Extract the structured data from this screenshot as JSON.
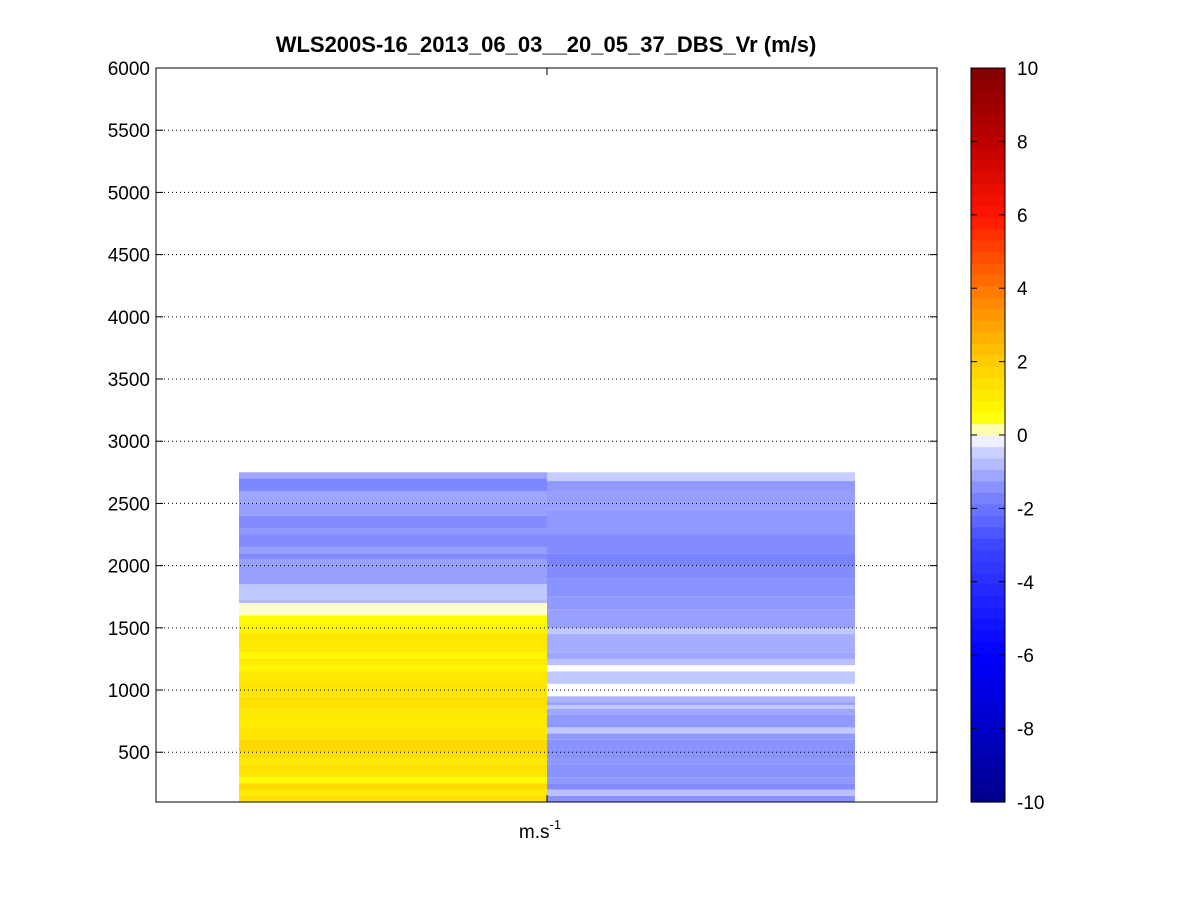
{
  "chart_data": {
    "type": "heatmap",
    "title": "WLS200S-16_2013_06_03__20_05_37_DBS_Vr (m/s)",
    "xlabel": "m.s",
    "xlabel_superscript": "-1",
    "ylabel": "",
    "ylim": [
      100,
      6000
    ],
    "yticks": [
      500,
      1000,
      1500,
      2000,
      2500,
      3000,
      3500,
      4000,
      4500,
      5000,
      5500,
      6000
    ],
    "grid": "horizontal dotted",
    "colormap": "blue-white-yellow-red",
    "clim": [
      -10,
      10
    ],
    "colorbar_ticks": [
      10,
      8,
      6,
      4,
      2,
      0,
      -2,
      -4,
      -6,
      -8,
      -10
    ],
    "columns": [
      {
        "name": "",
        "cells": [
          {
            "from": 100,
            "to": 150,
            "value": 1.4
          },
          {
            "from": 150,
            "to": 200,
            "value": 1.1
          },
          {
            "from": 200,
            "to": 250,
            "value": 1.6
          },
          {
            "from": 250,
            "to": 300,
            "value": 0.6
          },
          {
            "from": 300,
            "to": 350,
            "value": 1.2
          },
          {
            "from": 350,
            "to": 400,
            "value": 1.4
          },
          {
            "from": 400,
            "to": 450,
            "value": 1.2
          },
          {
            "from": 450,
            "to": 500,
            "value": 1.5
          },
          {
            "from": 500,
            "to": 600,
            "value": 1.6
          },
          {
            "from": 600,
            "to": 650,
            "value": 1.3
          },
          {
            "from": 650,
            "to": 700,
            "value": 1.2
          },
          {
            "from": 700,
            "to": 800,
            "value": 1.1
          },
          {
            "from": 800,
            "to": 850,
            "value": 1.2
          },
          {
            "from": 850,
            "to": 950,
            "value": 1.4
          },
          {
            "from": 950,
            "to": 1050,
            "value": 1.3
          },
          {
            "from": 1050,
            "to": 1150,
            "value": 1.2
          },
          {
            "from": 1150,
            "to": 1200,
            "value": 0.8
          },
          {
            "from": 1200,
            "to": 1250,
            "value": 1.1
          },
          {
            "from": 1250,
            "to": 1300,
            "value": 0.7
          },
          {
            "from": 1300,
            "to": 1350,
            "value": 1.1
          },
          {
            "from": 1350,
            "to": 1450,
            "value": 1.2
          },
          {
            "from": 1450,
            "to": 1500,
            "value": 0.9
          },
          {
            "from": 1500,
            "to": 1550,
            "value": 0.7
          },
          {
            "from": 1550,
            "to": 1600,
            "value": 0.6
          },
          {
            "from": 1600,
            "to": 1700,
            "value": 0.1
          },
          {
            "from": 1700,
            "to": 1730,
            "value": -0.8
          },
          {
            "from": 1730,
            "to": 1850,
            "value": -0.6
          },
          {
            "from": 1850,
            "to": 2050,
            "value": -1.2
          },
          {
            "from": 2050,
            "to": 2100,
            "value": -1.5
          },
          {
            "from": 2100,
            "to": 2150,
            "value": -1.2
          },
          {
            "from": 2150,
            "to": 2250,
            "value": -1.5
          },
          {
            "from": 2250,
            "to": 2300,
            "value": -1.3
          },
          {
            "from": 2300,
            "to": 2400,
            "value": -1.5
          },
          {
            "from": 2400,
            "to": 2500,
            "value": -1.2
          },
          {
            "from": 2500,
            "to": 2600,
            "value": -1.1
          },
          {
            "from": 2600,
            "to": 2700,
            "value": -1.6
          },
          {
            "from": 2700,
            "to": 2750,
            "value": -1.1
          }
        ]
      },
      {
        "name": "",
        "cells": [
          {
            "from": 100,
            "to": 150,
            "value": -1.4
          },
          {
            "from": 150,
            "to": 200,
            "value": -0.7
          },
          {
            "from": 200,
            "to": 250,
            "value": -1.5
          },
          {
            "from": 250,
            "to": 300,
            "value": -1.3
          },
          {
            "from": 300,
            "to": 400,
            "value": -1.4
          },
          {
            "from": 400,
            "to": 450,
            "value": -1.3
          },
          {
            "from": 450,
            "to": 600,
            "value": -1.4
          },
          {
            "from": 600,
            "to": 650,
            "value": -1.3
          },
          {
            "from": 650,
            "to": 700,
            "value": -0.6
          },
          {
            "from": 700,
            "to": 800,
            "value": -1.3
          },
          {
            "from": 800,
            "to": 850,
            "value": -1.1
          },
          {
            "from": 850,
            "to": 880,
            "value": -0.6
          },
          {
            "from": 880,
            "to": 900,
            "value": -1.2
          },
          {
            "from": 900,
            "to": 950,
            "value": -0.9
          },
          {
            "from": 950,
            "to": 1050,
            "value": 0.0
          },
          {
            "from": 1050,
            "to": 1150,
            "value": -0.6
          },
          {
            "from": 1150,
            "to": 1200,
            "value": 0.0
          },
          {
            "from": 1200,
            "to": 1250,
            "value": -0.7
          },
          {
            "from": 1250,
            "to": 1300,
            "value": -1.1
          },
          {
            "from": 1300,
            "to": 1450,
            "value": -1.0
          },
          {
            "from": 1450,
            "to": 1500,
            "value": -0.6
          },
          {
            "from": 1500,
            "to": 1650,
            "value": -1.2
          },
          {
            "from": 1650,
            "to": 1750,
            "value": -1.3
          },
          {
            "from": 1750,
            "to": 1900,
            "value": -1.4
          },
          {
            "from": 1900,
            "to": 2000,
            "value": -1.5
          },
          {
            "from": 2000,
            "to": 2100,
            "value": -1.7
          },
          {
            "from": 2100,
            "to": 2250,
            "value": -1.5
          },
          {
            "from": 2250,
            "to": 2450,
            "value": -1.3
          },
          {
            "from": 2450,
            "to": 2600,
            "value": -1.2
          },
          {
            "from": 2600,
            "to": 2680,
            "value": -1.3
          },
          {
            "from": 2680,
            "to": 2750,
            "value": -0.5
          }
        ]
      }
    ]
  }
}
